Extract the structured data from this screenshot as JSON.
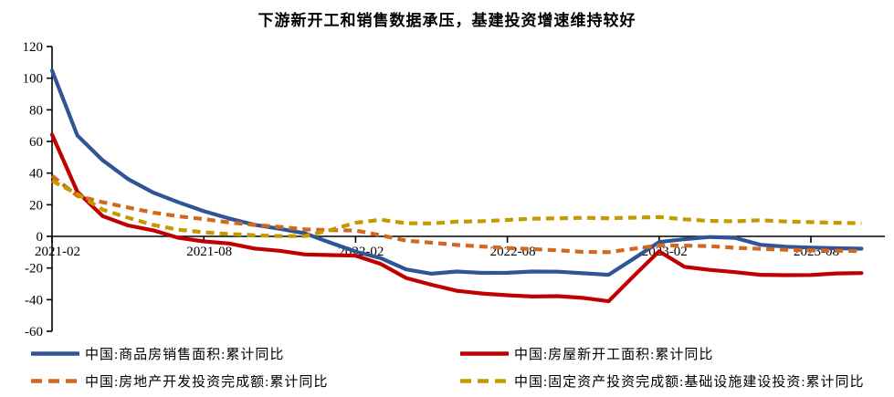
{
  "chart_data": {
    "type": "line",
    "title": "下游新开工和销售数据承压，基建投资增速维持较好",
    "xlabel": "",
    "ylabel": "",
    "ylim": [
      -60,
      120
    ],
    "y_ticks": [
      120,
      100,
      80,
      60,
      40,
      20,
      0,
      -20,
      -40,
      -60
    ],
    "grid": false,
    "legend_position": "bottom",
    "axis_color": "#000000",
    "x_tick_labels": [
      "2021-02",
      "2021-08",
      "2022-02",
      "2022-08",
      "2023-02",
      "2023-08"
    ],
    "x_tick_indices": [
      0,
      6,
      12,
      18,
      24,
      30
    ],
    "x": [
      "2021-02",
      "2021-03",
      "2021-04",
      "2021-05",
      "2021-06",
      "2021-07",
      "2021-08",
      "2021-09",
      "2021-10",
      "2021-11",
      "2021-12",
      "2022-01",
      "2022-02",
      "2022-03",
      "2022-04",
      "2022-05",
      "2022-06",
      "2022-07",
      "2022-08",
      "2022-09",
      "2022-10",
      "2022-11",
      "2022-12",
      "2023-01",
      "2023-02",
      "2023-03",
      "2023-04",
      "2023-05",
      "2023-06",
      "2023-07",
      "2023-08",
      "2023-09",
      "2023-10"
    ],
    "series": [
      {
        "name": "中国:商品房销售面积:累计同比",
        "color": "#2F5597",
        "style": "solid",
        "values": [
          104.9,
          63.8,
          48.1,
          36.3,
          27.7,
          21.5,
          15.9,
          11.3,
          7.3,
          4.8,
          1.9,
          -4.0,
          -9.6,
          -13.8,
          -20.9,
          -23.6,
          -22.2,
          -23.1,
          -23.0,
          -22.2,
          -22.3,
          -23.3,
          -24.3,
          -14.0,
          -3.6,
          -1.8,
          -0.4,
          -0.9,
          -5.3,
          -6.5,
          -7.1,
          -7.5,
          -7.8
        ]
      },
      {
        "name": "中国:房屋新开工面积:累计同比",
        "color": "#C00000",
        "style": "solid",
        "values": [
          64.3,
          28.2,
          12.8,
          6.9,
          3.8,
          -0.9,
          -3.2,
          -4.5,
          -7.7,
          -9.1,
          -11.4,
          -11.8,
          -12.2,
          -17.5,
          -26.3,
          -30.6,
          -34.4,
          -36.1,
          -37.2,
          -38.0,
          -37.8,
          -38.9,
          -41.0,
          -25.0,
          -9.4,
          -19.2,
          -21.2,
          -22.6,
          -24.3,
          -24.5,
          -24.4,
          -23.4,
          -23.2
        ]
      },
      {
        "name": "中国:房地产开发投资完成额:累计同比",
        "color": "#D2691E",
        "style": "dashed",
        "values": [
          38.3,
          25.6,
          21.6,
          18.3,
          15.0,
          12.7,
          10.9,
          8.8,
          7.2,
          6.0,
          4.4,
          4.0,
          3.7,
          0.7,
          -2.7,
          -4.0,
          -5.4,
          -6.4,
          -7.4,
          -8.0,
          -8.8,
          -9.8,
          -10.0,
          -7.8,
          -5.7,
          -5.8,
          -6.2,
          -7.2,
          -7.9,
          -8.5,
          -8.8,
          -9.1,
          -9.3
        ]
      },
      {
        "name": "中国:固定资产投资完成额:基础设施建设投资:累计同比",
        "color": "#C49A00",
        "style": "dashed",
        "values": [
          35.0,
          26.8,
          16.9,
          11.8,
          7.2,
          4.2,
          2.6,
          1.5,
          0.7,
          0.2,
          0.2,
          4.0,
          8.6,
          10.5,
          8.3,
          8.2,
          9.3,
          9.6,
          10.4,
          11.2,
          11.4,
          11.7,
          11.5,
          11.8,
          12.2,
          10.8,
          9.8,
          9.5,
          10.2,
          9.4,
          9.0,
          8.6,
          8.3
        ]
      }
    ]
  }
}
